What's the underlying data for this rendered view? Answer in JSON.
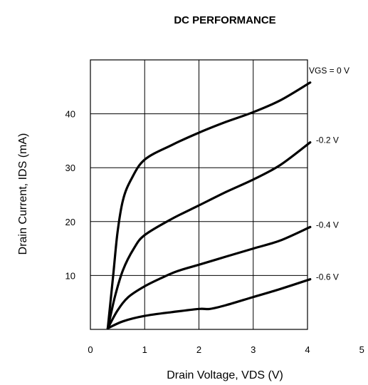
{
  "chart_data": {
    "type": "line",
    "title": "DC PERFORMANCE",
    "xlabel": "Drain Voltage, VDS (V)",
    "ylabel": "Drain Current, IDS (mA)",
    "xlim": [
      0,
      5
    ],
    "ylim": [
      0,
      50
    ],
    "x_ticks": [
      "0",
      "1",
      "2",
      "3",
      "4",
      "5"
    ],
    "y_ticks": [
      "10",
      "20",
      "30",
      "40"
    ],
    "grid": true,
    "series": [
      {
        "name": "VGS = 0 V",
        "x": [
          0.32,
          0.42,
          0.5,
          0.6,
          0.75,
          1.0,
          1.5,
          2.0,
          2.5,
          3.0,
          3.5,
          4.05
        ],
        "y": [
          0.2,
          10.0,
          18.0,
          24.0,
          27.8,
          31.5,
          34.2,
          36.5,
          38.5,
          40.3,
          42.5,
          45.8
        ]
      },
      {
        "name": "-0.2 V",
        "x": [
          0.32,
          0.45,
          0.6,
          0.8,
          1.0,
          1.5,
          2.0,
          2.5,
          3.0,
          3.5,
          4.05
        ],
        "y": [
          0.2,
          6.0,
          11.0,
          15.0,
          17.5,
          20.5,
          23.0,
          25.5,
          27.8,
          30.5,
          34.7
        ]
      },
      {
        "name": "-0.4 V",
        "x": [
          0.32,
          0.5,
          0.7,
          1.0,
          1.3,
          1.6,
          2.0,
          2.5,
          3.0,
          3.5,
          4.05
        ],
        "y": [
          0.2,
          3.5,
          6.0,
          8.0,
          9.5,
          10.8,
          12.0,
          13.5,
          15.0,
          16.5,
          19.0
        ]
      },
      {
        "name": "-0.6 V",
        "x": [
          0.32,
          0.6,
          1.0,
          1.5,
          2.0,
          2.2,
          2.5,
          3.0,
          3.5,
          4.05
        ],
        "y": [
          0.2,
          1.5,
          2.5,
          3.2,
          3.8,
          3.8,
          4.5,
          6.0,
          7.5,
          9.3
        ]
      }
    ]
  }
}
